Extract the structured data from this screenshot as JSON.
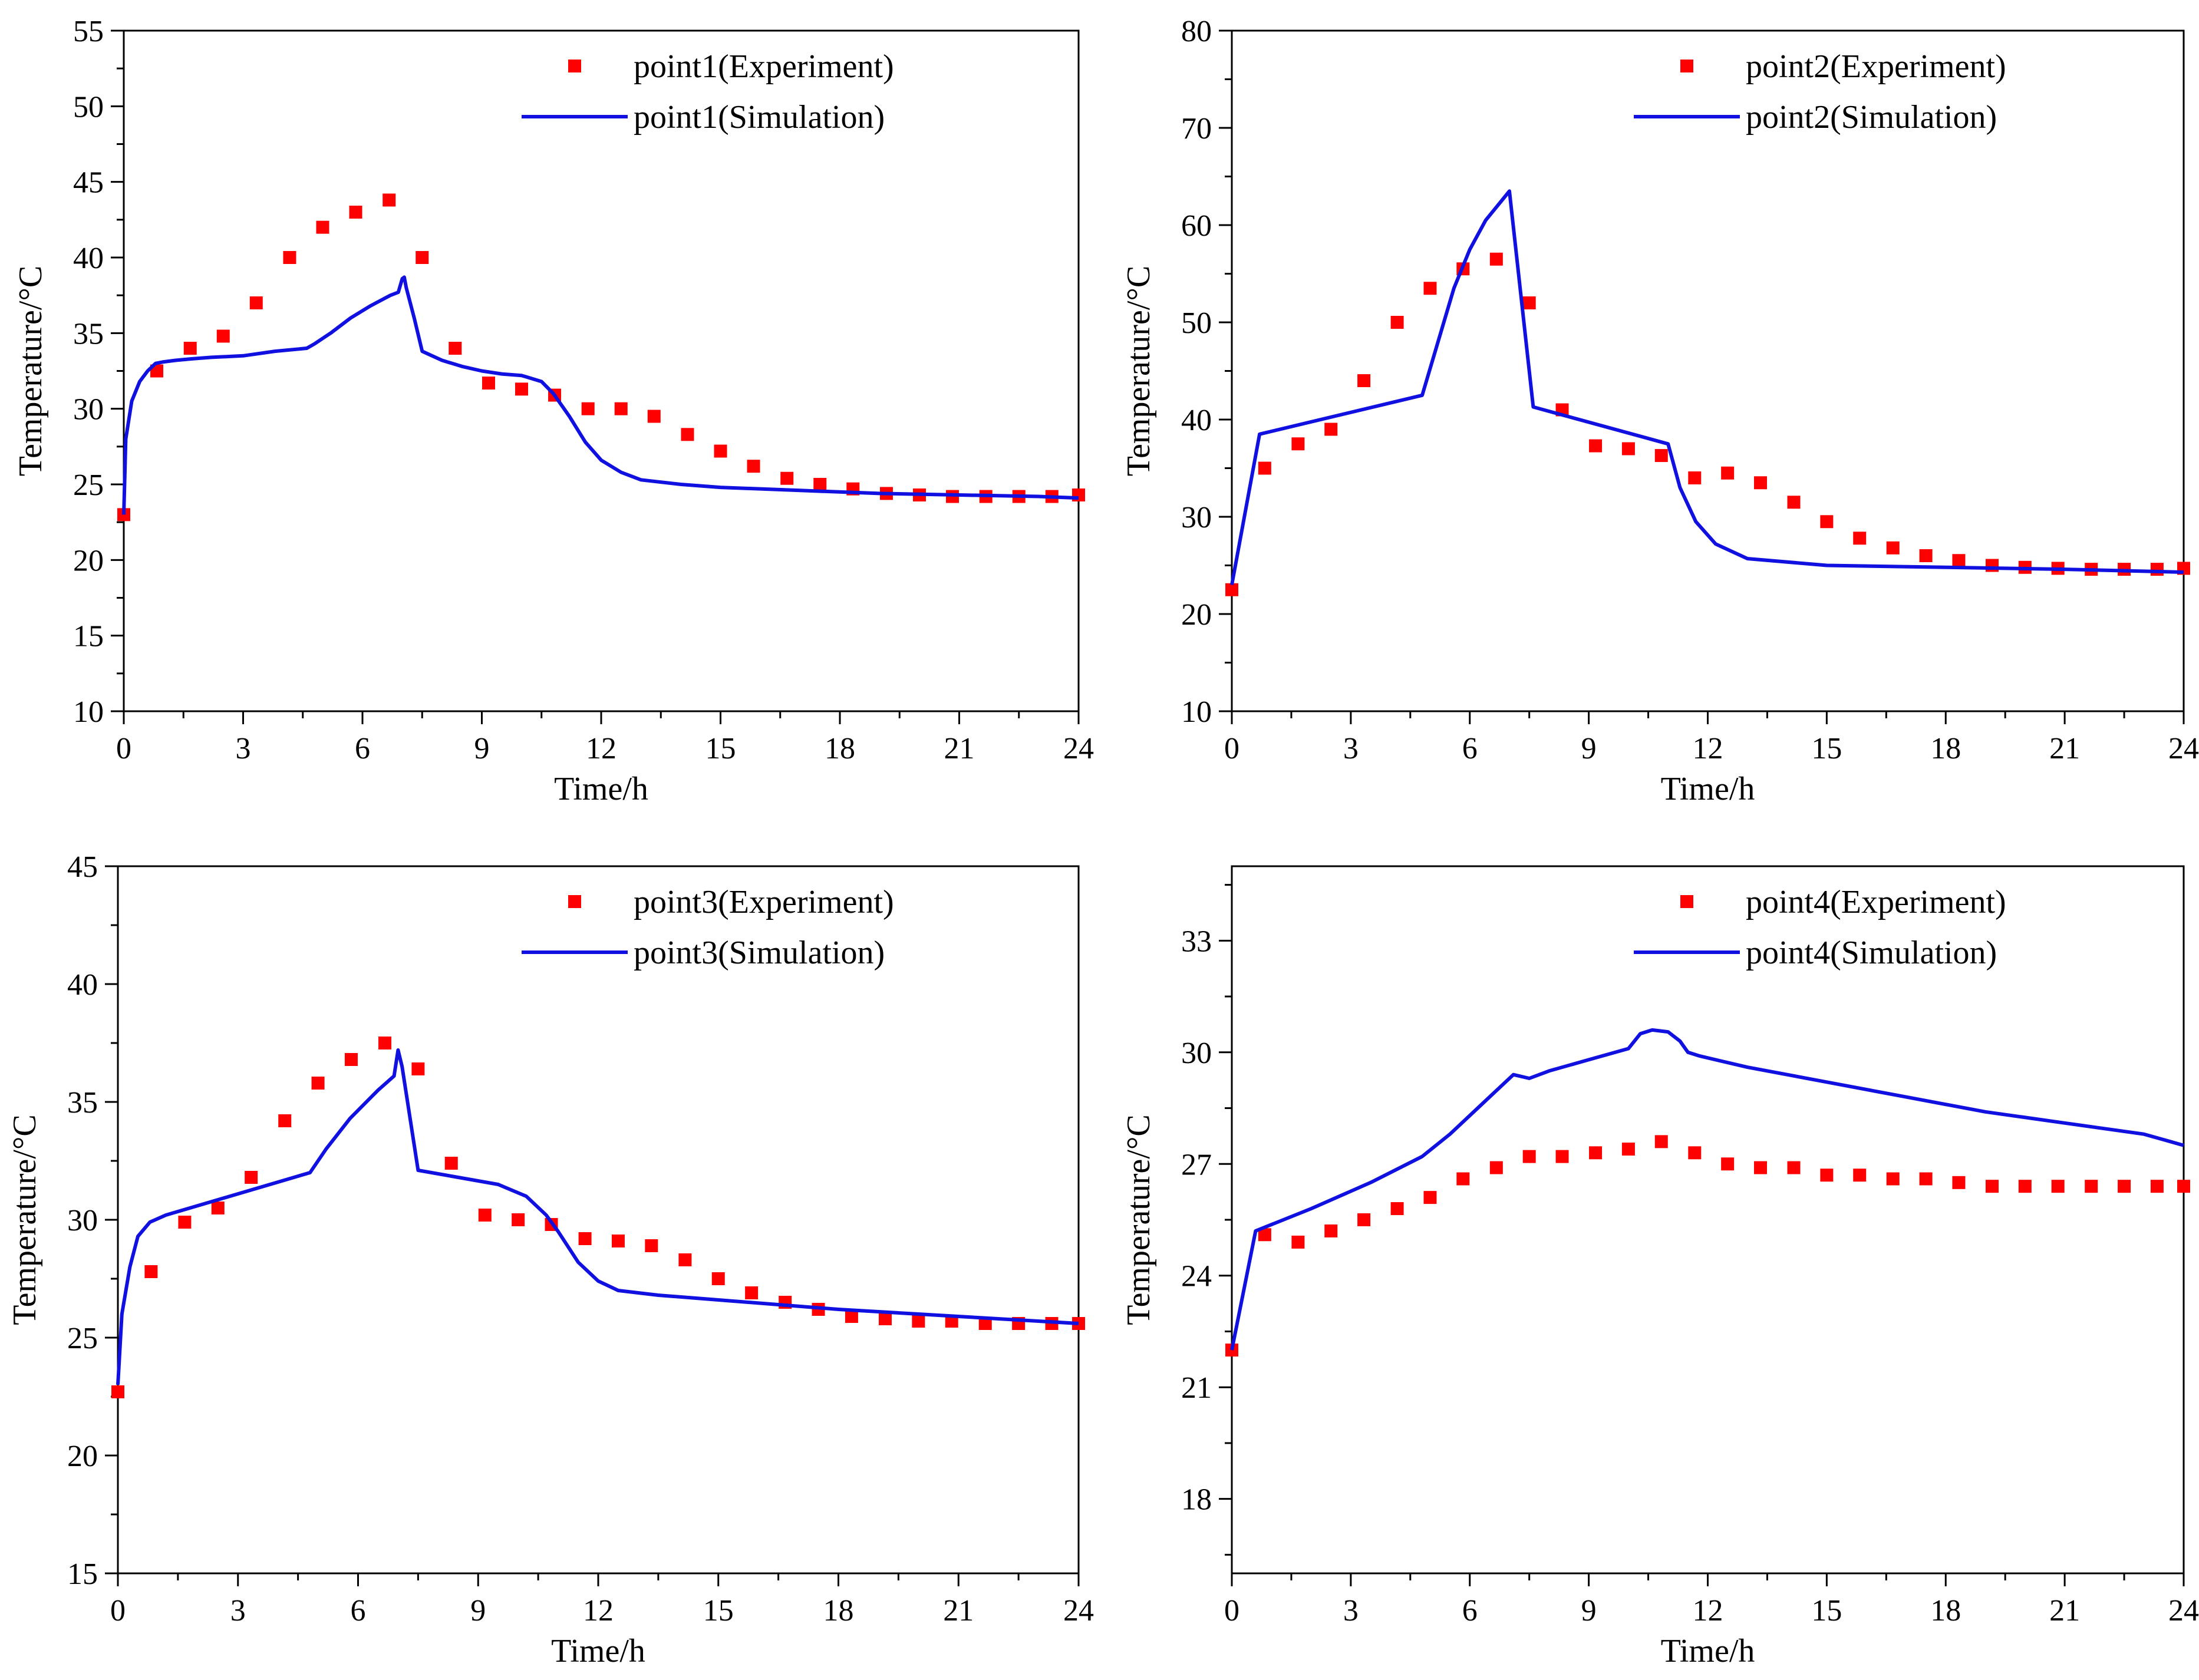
{
  "chart_data": [
    {
      "type": "line",
      "xlabel": "Time/h",
      "ylabel": "Temperature/°C",
      "xlim": [
        0,
        24
      ],
      "ylim": [
        10,
        55
      ],
      "xticks": [
        0,
        3,
        6,
        9,
        12,
        15,
        18,
        21,
        24
      ],
      "yticks": [
        10,
        15,
        20,
        25,
        30,
        35,
        40,
        45,
        50,
        55
      ],
      "legend": "top-right",
      "series": [
        {
          "name": "point1(Experiment)",
          "kind": "scatter",
          "color": "#ff0000",
          "x": [
            0,
            0.83,
            1.67,
            2.5,
            3.33,
            4.17,
            5.0,
            5.83,
            6.67,
            7.5,
            8.33,
            9.17,
            10.0,
            10.83,
            11.67,
            12.5,
            13.33,
            14.17,
            15.0,
            15.83,
            16.67,
            17.5,
            18.33,
            19.17,
            20.0,
            20.83,
            21.67,
            22.5,
            23.33,
            24.0
          ],
          "y": [
            23.0,
            32.5,
            34.0,
            34.8,
            37.0,
            40.0,
            42.0,
            43.0,
            43.8,
            40.0,
            34.0,
            31.7,
            31.3,
            30.9,
            30.0,
            30.0,
            29.5,
            28.3,
            27.2,
            26.2,
            25.4,
            25.0,
            24.7,
            24.4,
            24.3,
            24.2,
            24.2,
            24.2,
            24.2,
            24.3
          ]
        },
        {
          "name": "point1(Simulation)",
          "kind": "line",
          "color": "#1010e0",
          "x": [
            0,
            0.05,
            0.2,
            0.4,
            0.6,
            0.8,
            1.0,
            1.3,
            1.7,
            2.2,
            3.0,
            3.8,
            4.6,
            4.8,
            5.2,
            5.7,
            6.2,
            6.7,
            6.9,
            7.0,
            7.05,
            7.1,
            7.3,
            7.5,
            8.0,
            8.5,
            9.0,
            9.5,
            10.0,
            10.5,
            10.8,
            11.2,
            11.6,
            12.0,
            12.5,
            13.0,
            14.0,
            15.0,
            17.0,
            19.0,
            21.0,
            23.0,
            24.0
          ],
          "y": [
            23.0,
            28.0,
            30.5,
            31.8,
            32.5,
            33.0,
            33.1,
            33.2,
            33.3,
            33.4,
            33.5,
            33.8,
            34.0,
            34.3,
            35.0,
            36.0,
            36.8,
            37.5,
            37.7,
            38.6,
            38.7,
            38.0,
            36.0,
            33.8,
            33.2,
            32.8,
            32.5,
            32.3,
            32.2,
            31.8,
            31.0,
            29.5,
            27.8,
            26.6,
            25.8,
            25.3,
            25.0,
            24.8,
            24.6,
            24.4,
            24.3,
            24.2,
            24.1
          ]
        }
      ]
    },
    {
      "type": "line",
      "xlabel": "Time/h",
      "ylabel": "Temperature/°C",
      "xlim": [
        0,
        24
      ],
      "ylim": [
        10,
        80
      ],
      "xticks": [
        0,
        3,
        6,
        9,
        12,
        15,
        18,
        21,
        24
      ],
      "yticks": [
        10,
        20,
        30,
        40,
        50,
        60,
        70,
        80
      ],
      "legend": "top-right",
      "series": [
        {
          "name": "point2(Experiment)",
          "kind": "scatter",
          "color": "#ff0000",
          "x": [
            0,
            0.83,
            1.67,
            2.5,
            3.33,
            4.17,
            5.0,
            5.83,
            6.67,
            7.5,
            8.33,
            9.17,
            10.0,
            10.83,
            11.67,
            12.5,
            13.33,
            14.17,
            15.0,
            15.83,
            16.67,
            17.5,
            18.33,
            19.17,
            20.0,
            20.83,
            21.67,
            22.5,
            23.33,
            24.0
          ],
          "y": [
            22.5,
            35.0,
            37.5,
            39.0,
            44.0,
            50.0,
            53.5,
            55.5,
            56.5,
            52.0,
            41.0,
            37.3,
            37.0,
            36.3,
            34.0,
            34.5,
            33.5,
            31.5,
            29.5,
            27.8,
            26.8,
            26.0,
            25.5,
            25.0,
            24.8,
            24.7,
            24.6,
            24.6,
            24.6,
            24.7
          ]
        },
        {
          "name": "point2(Simulation)",
          "kind": "line",
          "color": "#1010e0",
          "x": [
            0,
            0.7,
            4.8,
            5.2,
            5.6,
            6.0,
            6.4,
            6.8,
            7.0,
            7.6,
            11.0,
            11.3,
            11.7,
            12.2,
            13.0,
            15.0,
            18.0,
            21.0,
            24.0
          ],
          "y": [
            23.0,
            38.5,
            42.5,
            48.0,
            53.5,
            57.5,
            60.5,
            62.5,
            63.5,
            41.3,
            37.5,
            33.0,
            29.5,
            27.2,
            25.7,
            25.0,
            24.8,
            24.6,
            24.3
          ]
        }
      ]
    },
    {
      "type": "line",
      "xlabel": "Time/h",
      "ylabel": "Temperature/°C",
      "xlim": [
        0,
        24
      ],
      "ylim": [
        15,
        45
      ],
      "xticks": [
        0,
        3,
        6,
        9,
        12,
        15,
        18,
        21,
        24
      ],
      "yticks": [
        15,
        20,
        25,
        30,
        35,
        40,
        45
      ],
      "legend": "top-right",
      "series": [
        {
          "name": "point3(Experiment)",
          "kind": "scatter",
          "color": "#ff0000",
          "x": [
            0,
            0.83,
            1.67,
            2.5,
            3.33,
            4.17,
            5.0,
            5.83,
            6.67,
            7.5,
            8.33,
            9.17,
            10.0,
            10.83,
            11.67,
            12.5,
            13.33,
            14.17,
            15.0,
            15.83,
            16.67,
            17.5,
            18.33,
            19.17,
            20.0,
            20.83,
            21.67,
            22.5,
            23.33,
            24.0
          ],
          "y": [
            22.7,
            27.8,
            29.9,
            30.5,
            31.8,
            34.2,
            35.8,
            36.8,
            37.5,
            36.4,
            32.4,
            30.2,
            30.0,
            29.8,
            29.2,
            29.1,
            28.9,
            28.3,
            27.5,
            26.9,
            26.5,
            26.2,
            25.9,
            25.8,
            25.7,
            25.7,
            25.6,
            25.6,
            25.6,
            25.6
          ]
        },
        {
          "name": "point3(Simulation)",
          "kind": "line",
          "color": "#1010e0",
          "x": [
            0,
            0.1,
            0.3,
            0.5,
            0.8,
            1.2,
            2.0,
            3.0,
            4.0,
            4.8,
            5.2,
            5.8,
            6.5,
            6.9,
            7.0,
            7.1,
            7.5,
            8.5,
            9.5,
            10.2,
            10.7,
            11.0,
            11.5,
            12.0,
            12.5,
            13.5,
            15.0,
            18.0,
            21.0,
            24.0
          ],
          "y": [
            23.0,
            26.0,
            28.0,
            29.3,
            29.9,
            30.2,
            30.6,
            31.1,
            31.6,
            32.0,
            33.0,
            34.3,
            35.5,
            36.1,
            37.2,
            36.5,
            32.1,
            31.8,
            31.5,
            31.0,
            30.2,
            29.5,
            28.2,
            27.4,
            27.0,
            26.8,
            26.6,
            26.2,
            25.9,
            25.6
          ]
        }
      ]
    },
    {
      "type": "line",
      "xlabel": "Time/h",
      "ylabel": "Temperature/°C",
      "xlim": [
        0,
        24
      ],
      "ylim": [
        16,
        35
      ],
      "xticks": [
        0,
        3,
        6,
        9,
        12,
        15,
        18,
        21,
        24
      ],
      "yticks": [
        18,
        21,
        24,
        27,
        30,
        33
      ],
      "legend": "top-right",
      "series": [
        {
          "name": "point4(Experiment)",
          "kind": "scatter",
          "color": "#ff0000",
          "x": [
            0,
            0.83,
            1.67,
            2.5,
            3.33,
            4.17,
            5.0,
            5.83,
            6.67,
            7.5,
            8.33,
            9.17,
            10.0,
            10.83,
            11.67,
            12.5,
            13.33,
            14.17,
            15.0,
            15.83,
            16.67,
            17.5,
            18.33,
            19.17,
            20.0,
            20.83,
            21.67,
            22.5,
            23.33,
            24.0
          ],
          "y": [
            22.0,
            25.1,
            24.9,
            25.2,
            25.5,
            25.8,
            26.1,
            26.6,
            26.9,
            27.2,
            27.2,
            27.3,
            27.4,
            27.6,
            27.3,
            27.0,
            26.9,
            26.9,
            26.7,
            26.7,
            26.6,
            26.6,
            26.5,
            26.4,
            26.4,
            26.4,
            26.4,
            26.4,
            26.4,
            26.4
          ]
        },
        {
          "name": "point4(Simulation)",
          "kind": "line",
          "color": "#1010e0",
          "x": [
            0,
            0.6,
            2.0,
            3.5,
            4.8,
            5.5,
            6.2,
            6.8,
            7.1,
            7.5,
            8.0,
            9.0,
            10.0,
            10.3,
            10.6,
            11.0,
            11.3,
            11.5,
            11.8,
            13.0,
            15.0,
            17.0,
            19.0,
            21.0,
            23.0,
            24.0
          ],
          "y": [
            22.0,
            25.2,
            25.8,
            26.5,
            27.2,
            27.8,
            28.5,
            29.1,
            29.4,
            29.3,
            29.5,
            29.8,
            30.1,
            30.5,
            30.6,
            30.55,
            30.3,
            30.0,
            29.9,
            29.6,
            29.2,
            28.8,
            28.4,
            28.1,
            27.8,
            27.5
          ]
        }
      ]
    }
  ]
}
